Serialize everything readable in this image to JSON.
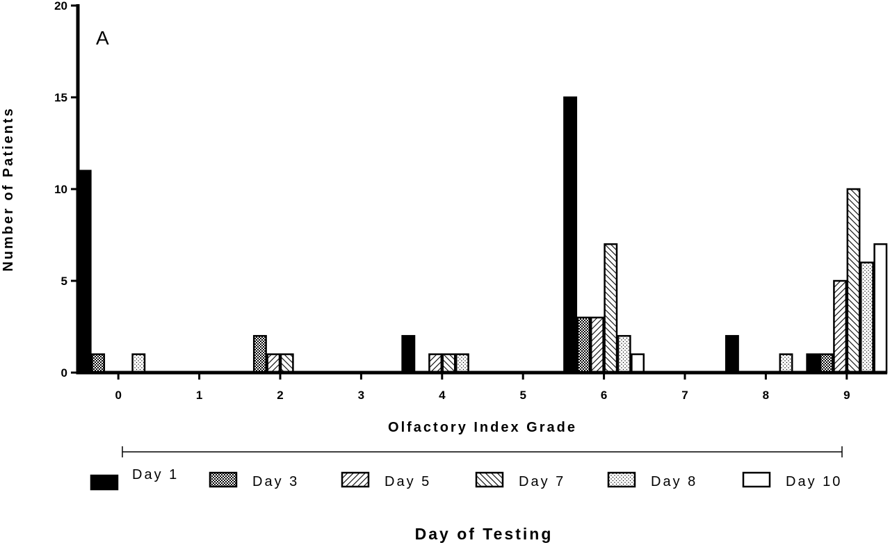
{
  "chart_data": {
    "type": "bar",
    "panel_label": "A",
    "xlabel": "Olfactory Index Grade",
    "ylabel": "Number of Patients",
    "legend_title": "Day of Testing",
    "legend_position": "bottom",
    "grid": false,
    "ylim": [
      0,
      20
    ],
    "yticks": [
      0,
      5,
      10,
      15,
      20
    ],
    "categories": [
      "0",
      "1",
      "2",
      "3",
      "4",
      "5",
      "6",
      "7",
      "8",
      "9"
    ],
    "series": [
      {
        "name": "Day 1",
        "pattern": "solid-black",
        "values": [
          11,
          0,
          0,
          0,
          2,
          0,
          15,
          0,
          2,
          1
        ]
      },
      {
        "name": "Day 3",
        "pattern": "checkered",
        "values": [
          1,
          0,
          2,
          0,
          0,
          0,
          3,
          0,
          0,
          1
        ]
      },
      {
        "name": "Day 5",
        "pattern": "diagonal-up",
        "values": [
          0,
          0,
          1,
          0,
          1,
          0,
          3,
          0,
          0,
          5
        ]
      },
      {
        "name": "Day 7",
        "pattern": "diagonal-down",
        "values": [
          0,
          0,
          1,
          0,
          1,
          0,
          7,
          0,
          0,
          10
        ]
      },
      {
        "name": "Day 8",
        "pattern": "dotted",
        "values": [
          1,
          0,
          0,
          0,
          1,
          0,
          2,
          0,
          1,
          6
        ]
      },
      {
        "name": "Day 10",
        "pattern": "open-white",
        "values": [
          0,
          0,
          0,
          0,
          0,
          0,
          1,
          0,
          0,
          7
        ]
      }
    ]
  }
}
